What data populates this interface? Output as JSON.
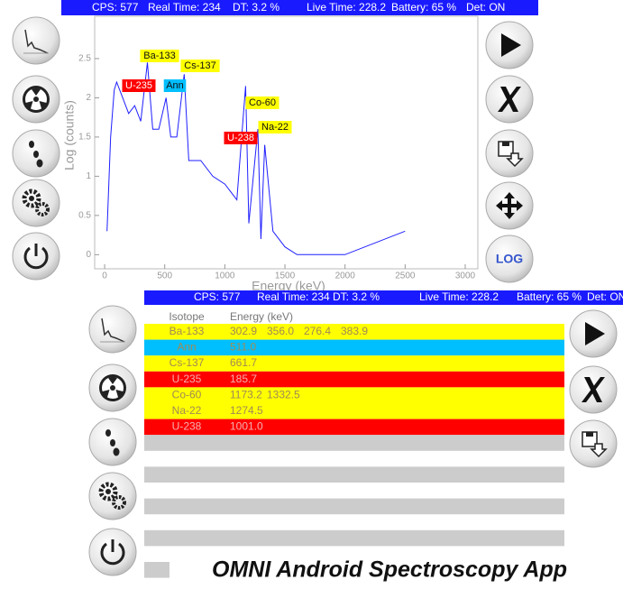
{
  "status_bar": [
    "CPS: 577",
    "Real Time: 234",
    "DT: 3.2 %",
    "Live Time: 228.2",
    "Battery: 65 %",
    "Det: ON"
  ],
  "chart_data": {
    "type": "line",
    "xlabel": "Energy (keV)",
    "ylabel": "Log (counts)",
    "x": [
      20,
      50,
      80,
      100,
      150,
      200,
      250,
      300,
      356,
      400,
      450,
      511,
      550,
      600,
      662,
      700,
      800,
      900,
      1000,
      1100,
      1173,
      1200,
      1275,
      1300,
      1332,
      1400,
      1500,
      1600,
      1800,
      2000,
      2500
    ],
    "series": [
      {
        "color": "#1f1fff",
        "values": [
          0.3,
          1.5,
          2.1,
          2.2,
          2.0,
          1.8,
          1.9,
          1.7,
          2.45,
          1.6,
          1.6,
          2.0,
          1.5,
          1.5,
          2.3,
          1.2,
          1.2,
          1.0,
          0.9,
          0.7,
          2.15,
          0.4,
          1.6,
          0.2,
          1.4,
          0.3,
          0.1,
          0.0,
          0.0,
          0.0,
          0.3
        ]
      }
    ],
    "xlim": [
      -83,
      3105
    ],
    "ylim": [
      -0.18,
      3.04
    ],
    "xticks": [
      0,
      500,
      1000,
      1500,
      2000,
      2500,
      3000
    ],
    "yticks": [
      0,
      0.5,
      1,
      1.5,
      2,
      2.5
    ],
    "annotations": [
      {
        "text": "Ba-133",
        "color": "#ffff00"
      },
      {
        "text": "Cs-137",
        "color": "#ffff00"
      },
      {
        "text": "U-235",
        "color": "#ff0000"
      },
      {
        "text": "Ann",
        "color": "#00bfff"
      },
      {
        "text": "Co-60",
        "color": "#ffff00"
      },
      {
        "text": "U-238",
        "color": "#ff0000"
      },
      {
        "text": "Na-22",
        "color": "#ffff00"
      }
    ]
  },
  "log_button": "LOG",
  "table": {
    "header": [
      "Isotope",
      "Energy (keV)"
    ],
    "rows": [
      {
        "isotope": "Ba-133",
        "energies": [
          "302.9",
          "356.0",
          "276.4",
          "383.9"
        ],
        "color": "#ffff00"
      },
      {
        "isotope": "Ann",
        "energies": [
          "511.0"
        ],
        "color": "#00bfff"
      },
      {
        "isotope": "Cs-137",
        "energies": [
          "661.7"
        ],
        "color": "#ffff00"
      },
      {
        "isotope": "U-235",
        "energies": [
          "185.7"
        ],
        "color": "#ff0000"
      },
      {
        "isotope": "Co-60",
        "energies": [
          "1173.2",
          "1332.5"
        ],
        "color": "#ffff00"
      },
      {
        "isotope": "Na-22",
        "energies": [
          "1274.5"
        ],
        "color": "#ffff00"
      },
      {
        "isotope": "U-238",
        "energies": [
          "1001.0"
        ],
        "color": "#ff0000"
      }
    ]
  },
  "caption": "OMNI Android Spectroscopy App"
}
